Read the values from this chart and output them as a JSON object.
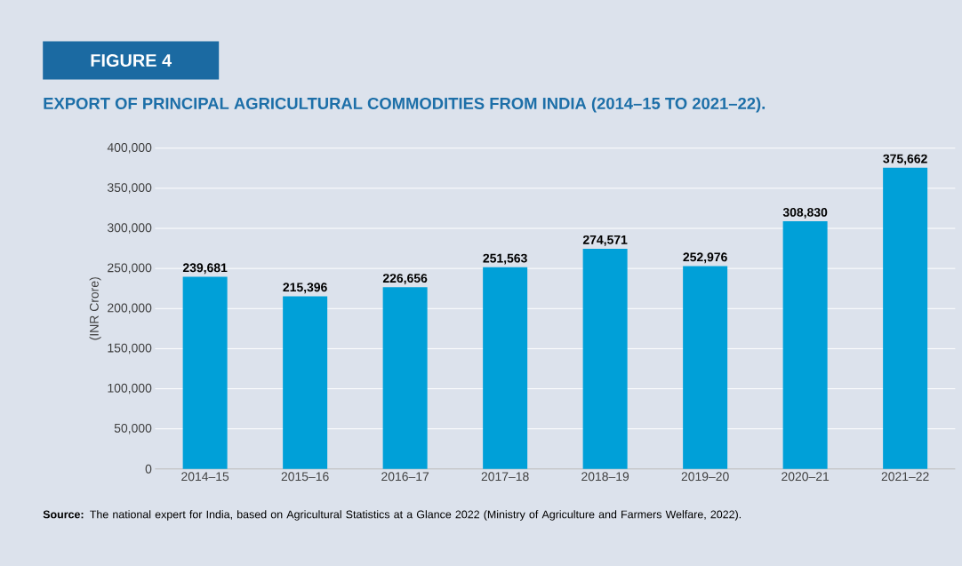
{
  "chart_data": {
    "type": "bar",
    "title": "EXPORT OF PRINCIPAL AGRICULTURAL COMMODITIES FROM INDIA (2014–15 TO 2021–22).",
    "ylabel": "(INR Crore)",
    "annotations": [
      "FIGURE 4",
      "**Source:** The national expert for India, based on Agricultural Statistics at a Glance 2022 (Ministry of Agriculture and Farmers Welfare, 2022)."
    ],
    "categories": [
      "2014–15",
      "2015–16",
      "2016–17",
      "2017–18",
      "2018–19",
      "2019–20",
      "2020–21",
      "2021–22"
    ],
    "values": [
      239681,
      215396,
      226656,
      251563,
      274571,
      252976,
      308830,
      375662
    ],
    "value_labels": [
      "239,681",
      "215,396",
      "226,656",
      "251,563",
      "274,571",
      "252,976",
      "308,830",
      "375,662"
    ],
    "color": "#00a0d8",
    "ylim": [
      0,
      400000
    ],
    "yticks": [
      {
        "value": 0,
        "label": "0"
      },
      {
        "value": 50000,
        "label": "50,000"
      },
      {
        "value": 100000,
        "label": "100,000"
      },
      {
        "value": 150000,
        "label": "150,000"
      },
      {
        "value": 200000,
        "label": "200,000"
      },
      {
        "value": 250000,
        "label": "250,000"
      },
      {
        "value": 300000,
        "label": "300,000"
      },
      {
        "value": 350000,
        "label": "350,000"
      },
      {
        "value": 400000,
        "label": "400,000"
      }
    ],
    "grid": "y"
  }
}
